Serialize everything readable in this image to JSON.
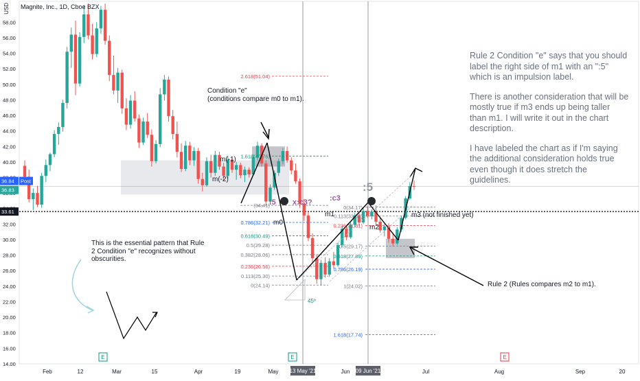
{
  "header": {
    "title": "Magnite, Inc., 1D, Cboe BZX",
    "unit": "USD"
  },
  "notes": {
    "right": [
      "Rule 2 Condition \"e\" says that you should label the right side of m1 with an \":5\" which is an impulsion label.",
      "There is another consideration that will be mostly true if m3 ends up being taller than m1. I will write it out in the chart description.",
      "I have labeled the chart as if I'm saying the additional consideration holds true even though it does stretch the guidelines."
    ],
    "left": "This is the essential pattern that Rule 2 Condition \"e\" recognizes without obscurities.",
    "condition_e": "Condition \"e\"\n(conditions compare m0 to m1).",
    "rule2": "Rule 2 (Rules compares m2 to m1)."
  },
  "labels": {
    "m_minus_1": "m(-1)",
    "m_minus_2": "m(-2)",
    "m0": "m0",
    "m1": "m1",
    "m2": "m2",
    "m3": "m3 (not finished yet)",
    "colon5_small": ":5",
    "x_c3": "x:c3?",
    "c3": ":c3",
    "colon5_big": ":5",
    "angle": "45º",
    "earnings": "E",
    "post": "Post"
  },
  "price_tags": {
    "post": "36.84",
    "last": "36.83",
    "line": "33.61"
  },
  "colors": {
    "up": "#26a69a",
    "down": "#ef5350",
    "text": "#131722",
    "muted": "#6a7180",
    "fib_red": "#f23645",
    "fib_blue": "#2962ff",
    "fib_teal": "#089981",
    "fib_gray": "#787b86",
    "zone": "#d1d4dc",
    "pattern_line": "#000000",
    "tag_blue": "#2962ff",
    "tag_dark": "#131722"
  },
  "chart_data": {
    "type": "candlestick",
    "ylim": [
      13,
      60.5
    ],
    "y_ticks": [
      14.0,
      16.0,
      18.0,
      20.0,
      22.0,
      24.0,
      26.0,
      28.0,
      30.0,
      32.0,
      34.0,
      36.0,
      38.0,
      40.0,
      42.0,
      44.0,
      46.0,
      48.0,
      50.0,
      52.0,
      54.0,
      56.0,
      58.0
    ],
    "y_tick_labels": [
      "14.00",
      "16.00",
      "18.00",
      "20.00",
      "22.00",
      "24.00",
      "26.00",
      "28.00",
      "30.00",
      "32.00",
      "34.00",
      "36.00",
      "38.00",
      "40.00",
      "42.00",
      "44.00",
      "46.00",
      "48.00",
      "50.00",
      "52.00",
      "54.00",
      "56.00",
      "58.00"
    ],
    "x_ticks": [
      "Feb",
      "12",
      "Mar",
      "15",
      "Apr",
      "19",
      "May",
      "Jun",
      "Jul",
      "Aug",
      "Sep",
      "20"
    ],
    "x_highlight": [
      "13 May '21",
      "09 Jun '21"
    ],
    "candles": [
      [
        39.5,
        40.2,
        37.6,
        38.1
      ],
      [
        38.1,
        39.0,
        34.8,
        35.2
      ],
      [
        35.2,
        36.6,
        33.8,
        36.0
      ],
      [
        36.0,
        36.9,
        34.2,
        34.5
      ],
      [
        34.5,
        38.6,
        34.1,
        38.2
      ],
      [
        38.2,
        40.3,
        37.4,
        39.6
      ],
      [
        39.6,
        41.2,
        38.8,
        41.0
      ],
      [
        41.0,
        44.1,
        40.6,
        43.6
      ],
      [
        43.6,
        45.1,
        42.2,
        44.5
      ],
      [
        44.5,
        48.0,
        43.9,
        47.6
      ],
      [
        47.6,
        54.8,
        46.9,
        54.2
      ],
      [
        54.2,
        57.3,
        52.1,
        56.4
      ],
      [
        56.4,
        58.2,
        48.6,
        50.1
      ],
      [
        50.1,
        56.7,
        49.7,
        56.1
      ],
      [
        56.1,
        60.2,
        55.3,
        59.0
      ],
      [
        59.0,
        60.4,
        55.8,
        56.3
      ],
      [
        56.3,
        57.8,
        53.2,
        53.9
      ],
      [
        53.9,
        58.0,
        53.5,
        57.2
      ],
      [
        57.2,
        60.1,
        56.5,
        59.6
      ],
      [
        59.6,
        60.4,
        55.1,
        55.6
      ],
      [
        55.6,
        56.3,
        50.4,
        51.2
      ],
      [
        51.2,
        53.7,
        48.7,
        49.2
      ],
      [
        49.2,
        52.1,
        47.6,
        51.5
      ],
      [
        51.5,
        51.9,
        46.2,
        46.9
      ],
      [
        46.9,
        48.2,
        44.1,
        44.8
      ],
      [
        44.8,
        48.6,
        44.3,
        47.9
      ],
      [
        47.9,
        49.1,
        45.2,
        45.6
      ],
      [
        45.6,
        46.1,
        41.8,
        42.5
      ],
      [
        42.5,
        45.7,
        42.2,
        45.2
      ],
      [
        45.2,
        46.3,
        43.1,
        43.5
      ],
      [
        43.5,
        44.2,
        39.4,
        40.1
      ],
      [
        40.1,
        42.8,
        39.8,
        42.3
      ],
      [
        42.3,
        49.5,
        41.9,
        48.7
      ],
      [
        48.7,
        51.2,
        47.9,
        50.6
      ],
      [
        50.6,
        51.0,
        45.2,
        45.9
      ],
      [
        45.9,
        46.7,
        42.9,
        43.6
      ],
      [
        43.6,
        45.2,
        40.6,
        41.3
      ],
      [
        41.3,
        42.4,
        38.7,
        39.1
      ],
      [
        39.1,
        42.7,
        38.8,
        42.1
      ],
      [
        42.1,
        42.6,
        39.6,
        40.2
      ],
      [
        40.2,
        41.9,
        39.5,
        41.4
      ],
      [
        41.4,
        41.8,
        37.2,
        37.8
      ],
      [
        37.8,
        38.6,
        36.2,
        37.0
      ],
      [
        37.0,
        40.6,
        36.8,
        40.1
      ],
      [
        40.1,
        40.9,
        38.0,
        38.6
      ],
      [
        38.6,
        41.4,
        38.2,
        40.9
      ],
      [
        40.9,
        41.3,
        39.0,
        39.4
      ],
      [
        39.4,
        39.9,
        37.6,
        38.2
      ],
      [
        38.2,
        40.8,
        37.9,
        40.3
      ],
      [
        40.3,
        40.7,
        38.6,
        39.0
      ],
      [
        39.0,
        40.0,
        37.7,
        39.6
      ],
      [
        39.6,
        39.9,
        37.9,
        38.3
      ],
      [
        38.3,
        39.4,
        37.4,
        39.0
      ],
      [
        39.0,
        39.3,
        38.0,
        38.4
      ],
      [
        38.4,
        41.0,
        38.2,
        40.6
      ],
      [
        40.6,
        42.6,
        40.2,
        42.1
      ],
      [
        42.1,
        42.4,
        39.4,
        39.8
      ],
      [
        39.8,
        40.2,
        34.4,
        34.9
      ],
      [
        34.9,
        37.1,
        34.5,
        36.7
      ],
      [
        36.7,
        38.9,
        36.4,
        38.6
      ],
      [
        38.6,
        40.4,
        38.2,
        40.1
      ],
      [
        40.1,
        41.8,
        39.7,
        41.4
      ],
      [
        41.4,
        42.0,
        39.9,
        40.2
      ],
      [
        40.2,
        40.6,
        38.4,
        38.9
      ],
      [
        38.9,
        39.8,
        37.2,
        37.5
      ],
      [
        37.5,
        37.9,
        34.1,
        34.6
      ],
      [
        34.6,
        35.2,
        32.4,
        33.1
      ],
      [
        33.1,
        33.6,
        29.8,
        30.2
      ],
      [
        30.2,
        30.8,
        27.1,
        27.6
      ],
      [
        27.6,
        28.1,
        24.3,
        24.9
      ],
      [
        24.9,
        27.4,
        24.1,
        27.0
      ],
      [
        27.0,
        27.7,
        25.1,
        25.5
      ],
      [
        25.5,
        27.6,
        25.2,
        27.2
      ],
      [
        27.2,
        28.4,
        26.3,
        26.7
      ],
      [
        26.7,
        29.6,
        26.5,
        29.3
      ],
      [
        29.3,
        31.8,
        29.0,
        31.4
      ],
      [
        31.4,
        31.8,
        29.9,
        30.3
      ],
      [
        30.3,
        32.2,
        30.1,
        31.9
      ],
      [
        31.9,
        33.4,
        31.6,
        33.1
      ],
      [
        33.1,
        33.5,
        31.8,
        32.2
      ],
      [
        32.2,
        34.0,
        32.0,
        33.7
      ],
      [
        33.7,
        34.3,
        32.8,
        33.0
      ],
      [
        33.0,
        33.9,
        32.6,
        33.6
      ],
      [
        33.6,
        34.4,
        31.9,
        32.3
      ],
      [
        32.3,
        32.8,
        30.9,
        31.2
      ],
      [
        31.2,
        32.0,
        30.4,
        31.7
      ],
      [
        31.7,
        32.1,
        29.6,
        30.1
      ],
      [
        30.1,
        30.9,
        29.1,
        29.5
      ],
      [
        29.5,
        31.6,
        29.3,
        31.3
      ],
      [
        31.3,
        33.1,
        31.0,
        32.8
      ],
      [
        32.8,
        35.6,
        32.6,
        35.3
      ],
      [
        35.3,
        37.4,
        35.1,
        36.9
      ],
      [
        36.9,
        37.6,
        36.4,
        36.8
      ]
    ],
    "fib_upper": [
      {
        "label": "2.618(51.04)",
        "value": 51.04
      },
      {
        "label": "1.618(40.76)",
        "value": 40.76
      },
      {
        "label": "0.786(32.21)",
        "value": 32.21
      },
      {
        "label": "0.618(30.49)",
        "value": 30.49
      },
      {
        "label": "0.5(29.28)",
        "value": 29.28
      },
      {
        "label": "0.382(28.06)",
        "value": 28.06
      },
      {
        "label": "0.236(26.56)",
        "value": 26.56
      },
      {
        "label": "0.113(25.30)",
        "value": 25.3
      },
      {
        "label": "0(24.14)",
        "value": 24.14
      },
      {
        "label": "(34.41)",
        "value": 34.41
      }
    ],
    "fib_lower": [
      {
        "label": "0(34.17)",
        "value": 34.17
      },
      {
        "label": "0.113(33.03)",
        "value": 33.03
      },
      {
        "label": "0.236(31.81)",
        "value": 31.81
      },
      {
        "label": "0.5(29.17)",
        "value": 29.17
      },
      {
        "label": "0.618(27.89)",
        "value": 27.89
      },
      {
        "label": "0.786(26.19)",
        "value": 26.19
      },
      {
        "label": "1(24.02)",
        "value": 24.02
      },
      {
        "label": "1.618(17.74)",
        "value": 17.74
      }
    ]
  }
}
